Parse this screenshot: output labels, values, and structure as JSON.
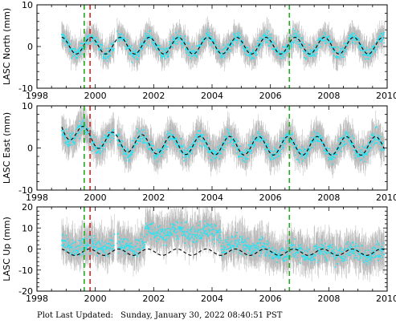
{
  "chart_data": [
    {
      "type": "scatter",
      "ylabel": "LASC North (mm)",
      "xlim": [
        1998,
        2010
      ],
      "ylim": [
        -10,
        10
      ],
      "x_ticks": [
        1998,
        2000,
        2002,
        2004,
        2006,
        2008,
        2010
      ],
      "y_ticks": [
        -10,
        0,
        10
      ],
      "data_range": [
        1998.85,
        2009.9
      ],
      "series": [
        {
          "role": "daily_positions",
          "color": "#22e5f5",
          "error_bar_color": "#b4b4b4",
          "offset": 0.3,
          "scatter": 1.6,
          "error_mm": 2.5
        },
        {
          "role": "seasonal_model",
          "style": "dashed",
          "color": "#000000",
          "offset": 0.2,
          "amplitude": 2.0,
          "phase_year": 0.6
        }
      ],
      "events": [
        {
          "x": 1999.62,
          "color": "#22aa22",
          "style": "dashed"
        },
        {
          "x": 1999.82,
          "color": "#dd2222",
          "style": "dashed"
        },
        {
          "x": 2006.65,
          "color": "#22aa22",
          "style": "dashed"
        }
      ]
    },
    {
      "type": "scatter",
      "ylabel": "LASC East (mm)",
      "xlim": [
        1998,
        2010
      ],
      "ylim": [
        -10,
        10
      ],
      "x_ticks": [
        1998,
        2000,
        2002,
        2004,
        2006,
        2008,
        2010
      ],
      "y_ticks": [
        -10,
        0,
        10
      ],
      "data_range": [
        1998.85,
        2009.9
      ],
      "series": [
        {
          "role": "daily_positions",
          "color": "#22e5f5",
          "error_bar_color": "#b4b4b4",
          "offset": 0.5,
          "scatter": 1.8,
          "error_mm": 3.0
        },
        {
          "role": "seasonal_model",
          "style": "dashed",
          "color": "#000000",
          "offset": 0.5,
          "amplitude": 2.2,
          "phase_year": 0.35,
          "start_value": 5.0,
          "decay_years": 1.2
        }
      ],
      "events": [
        {
          "x": 1999.62,
          "color": "#22aa22",
          "style": "dashed"
        },
        {
          "x": 1999.82,
          "color": "#dd2222",
          "style": "dashed"
        },
        {
          "x": 2006.65,
          "color": "#22aa22",
          "style": "dashed"
        }
      ]
    },
    {
      "type": "scatter",
      "ylabel": "LASC Up (mm)",
      "xlim": [
        1998,
        2010
      ],
      "ylim": [
        -20,
        20
      ],
      "x_ticks": [
        1998,
        2000,
        2002,
        2004,
        2006,
        2008,
        2010
      ],
      "y_ticks": [
        -20,
        -10,
        0,
        10,
        20
      ],
      "data_range": [
        1998.85,
        2009.9
      ],
      "series": [
        {
          "role": "daily_positions",
          "color": "#22e5f5",
          "error_bar_color": "#b4b4b4",
          "offset": 2.0,
          "scatter": 4.5,
          "error_mm": 7.0,
          "level_2002_2004": 6.0,
          "level_after_2006": -3.5
        },
        {
          "role": "seasonal_model",
          "style": "dashed",
          "color": "#000000",
          "offset": -1.5,
          "amplitude": 1.5,
          "phase_year": 0.55
        }
      ],
      "events": [
        {
          "x": 1999.62,
          "color": "#22aa22",
          "style": "dashed"
        },
        {
          "x": 1999.82,
          "color": "#dd2222",
          "style": "dashed"
        },
        {
          "x": 2006.65,
          "color": "#22aa22",
          "style": "dashed"
        }
      ]
    }
  ],
  "footer": {
    "label": "Plot Last Updated:",
    "timestamp": "Sunday, January 30, 2022 08:40:51 PST"
  }
}
